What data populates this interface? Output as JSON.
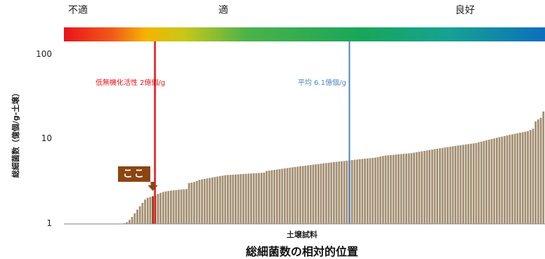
{
  "chart_data": {
    "type": "bar",
    "title": "総細菌数の相対的位置",
    "xlabel": "土壌試料",
    "ylabel": "総細菌数（億個/g-土壌）",
    "yscale": "log",
    "ylim": [
      1,
      180
    ],
    "yticks": [
      "1",
      "10",
      "100"
    ],
    "grid": false,
    "band_labels": [
      "不適",
      "適",
      "良好"
    ],
    "colors": {
      "bars": "#a38f72",
      "highlight": "#8b4513",
      "threshold_line": "#e8141b",
      "average_line": "#4b86c5"
    },
    "reference_lines": [
      {
        "label": "低無機化活性 2億個/g",
        "value": 2,
        "color": "#e8141b"
      },
      {
        "label": "平均 6.1億個/g",
        "value": 6.1,
        "color": "#4b86c5"
      }
    ],
    "highlight": {
      "label": "ここ",
      "value": 2.2
    },
    "values": [
      1.0,
      1.0,
      1.0,
      1.0,
      1.0,
      1.0,
      1.0,
      1.0,
      1.0,
      1.0,
      1.0,
      1.0,
      1.0,
      1.0,
      1.0,
      1.0,
      1.0,
      1.0,
      1.0,
      1.0,
      0.98,
      0.99,
      1.01,
      1.02,
      1.05,
      1.12,
      1.22,
      1.35,
      1.5,
      1.65,
      1.82,
      2.0,
      2.1,
      2.15,
      2.2,
      2.25,
      2.35,
      2.42,
      2.48,
      2.52,
      2.55,
      2.58,
      2.6,
      2.62,
      2.64,
      2.66,
      2.68,
      2.7,
      3.2,
      3.24,
      3.3,
      3.4,
      3.5,
      3.55,
      3.6,
      3.65,
      3.7,
      3.75,
      3.8,
      3.85,
      3.9,
      3.95,
      4.0,
      4.02,
      4.04,
      4.06,
      4.08,
      4.1,
      4.12,
      4.14,
      4.16,
      4.18,
      4.2,
      4.22,
      4.24,
      4.26,
      4.28,
      4.3,
      4.5,
      4.55,
      4.6,
      4.65,
      4.7,
      4.75,
      4.8,
      4.85,
      4.9,
      4.95,
      5.0,
      5.05,
      5.1,
      5.15,
      5.2,
      5.25,
      5.3,
      5.35,
      5.4,
      5.45,
      5.5,
      5.55,
      5.6,
      5.65,
      5.7,
      5.75,
      5.8,
      5.85,
      5.9,
      5.95,
      6.0,
      6.05,
      6.1,
      6.15,
      6.2,
      6.25,
      6.3,
      6.35,
      6.4,
      6.45,
      6.5,
      6.55,
      6.6,
      6.7,
      6.8,
      6.9,
      7.0,
      7.05,
      7.1,
      7.15,
      7.2,
      7.25,
      7.3,
      7.35,
      7.4,
      7.45,
      7.5,
      7.6,
      7.7,
      7.8,
      7.9,
      8.0,
      8.1,
      8.2,
      8.3,
      8.4,
      8.5,
      8.6,
      8.7,
      8.8,
      8.9,
      9.0,
      9.1,
      9.2,
      9.3,
      9.4,
      9.5,
      9.6,
      9.7,
      9.8,
      9.9,
      10.0,
      10.2,
      10.4,
      10.6,
      10.8,
      11.0,
      11.2,
      11.4,
      11.6,
      11.8,
      12.0,
      12.2,
      12.4,
      12.6,
      12.8,
      13.0,
      13.2,
      13.4,
      13.6,
      13.8,
      14.0,
      14.5,
      15.0,
      18.5,
      19.5,
      20.5,
      24.5
    ]
  }
}
